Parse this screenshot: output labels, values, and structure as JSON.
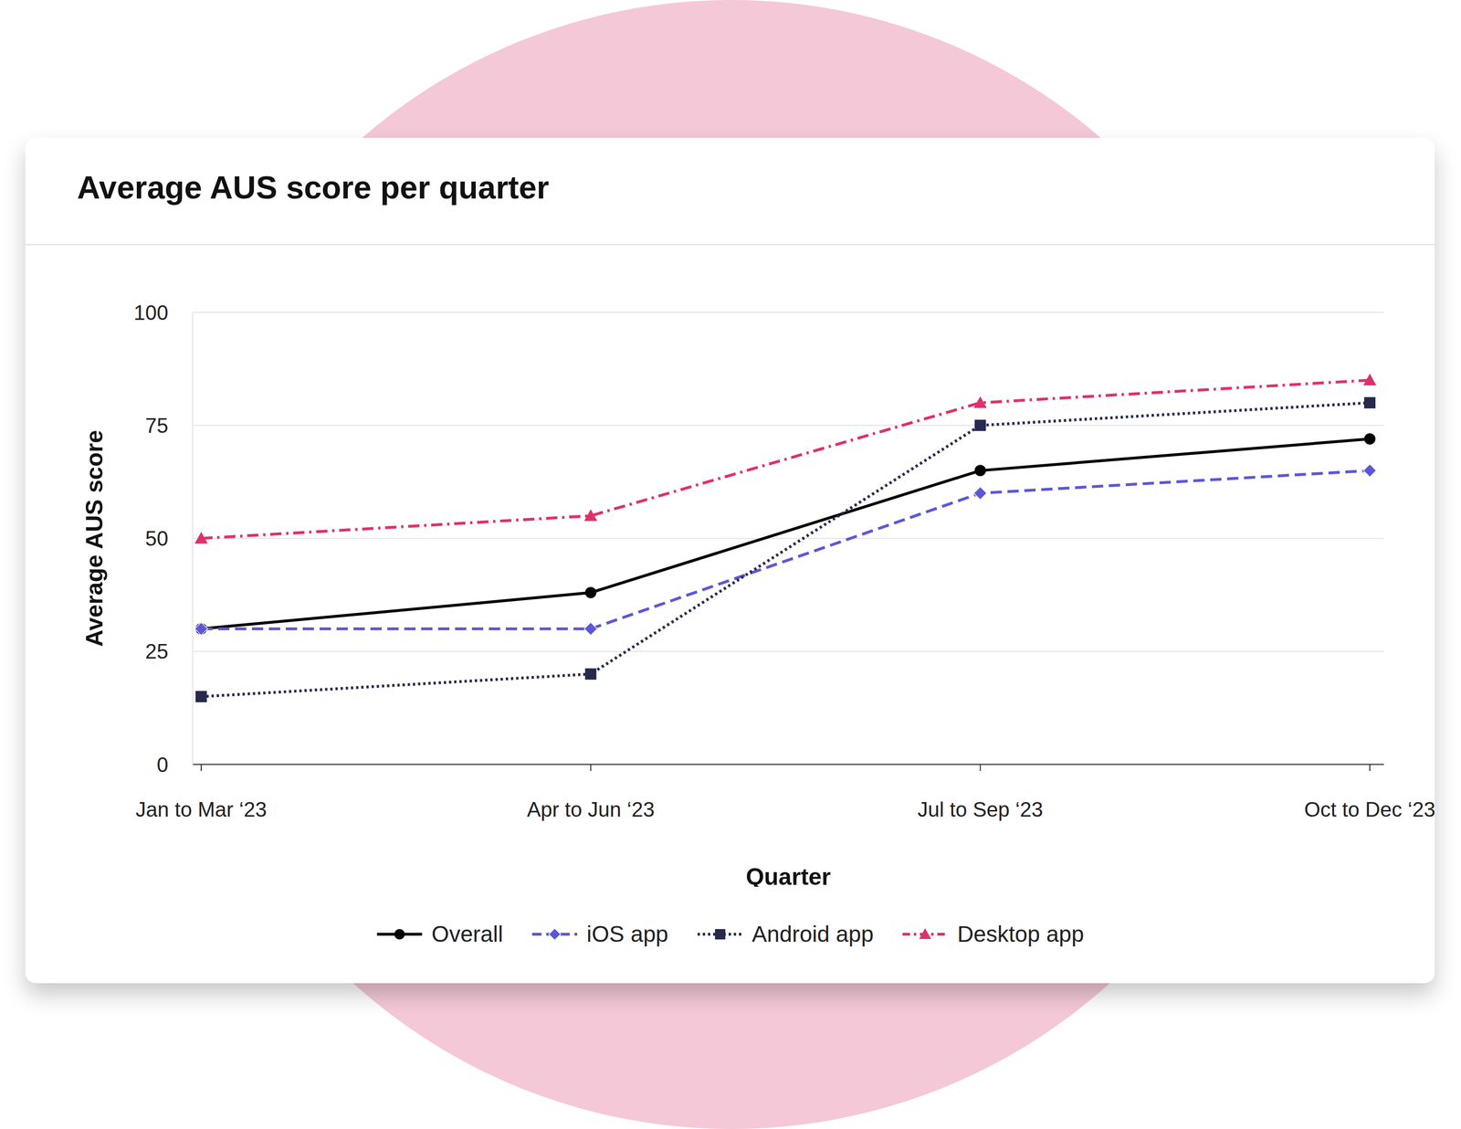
{
  "chart_data": {
    "type": "line",
    "title": "Average AUS score per quarter",
    "x_label": "Quarter",
    "y_label": "Average AUS score",
    "categories": [
      "Jan to Mar ‘23",
      "Apr to Jun ‘23",
      "Jul to Sep ‘23",
      "Oct to Dec ‘23"
    ],
    "series": [
      {
        "name": "Overall",
        "color": "#000000",
        "marker": "circle",
        "line_style": "solid",
        "values": [
          30,
          38,
          65,
          72
        ]
      },
      {
        "name": "iOS app",
        "color": "#5b57d9",
        "marker": "diamond",
        "line_style": "dashed",
        "values": [
          30,
          30,
          60,
          65
        ]
      },
      {
        "name": "Android app",
        "color": "#262a4f",
        "marker": "square",
        "line_style": "dotted",
        "values": [
          15,
          20,
          75,
          80
        ]
      },
      {
        "name": "Desktop app",
        "color": "#e0306a",
        "marker": "triangle",
        "line_style": "dashdot",
        "values": [
          50,
          55,
          80,
          85
        ]
      }
    ],
    "ylim": [
      0,
      100
    ],
    "yticks": [
      0,
      25,
      50,
      75,
      100
    ],
    "grid": true,
    "legend": "bottom"
  }
}
